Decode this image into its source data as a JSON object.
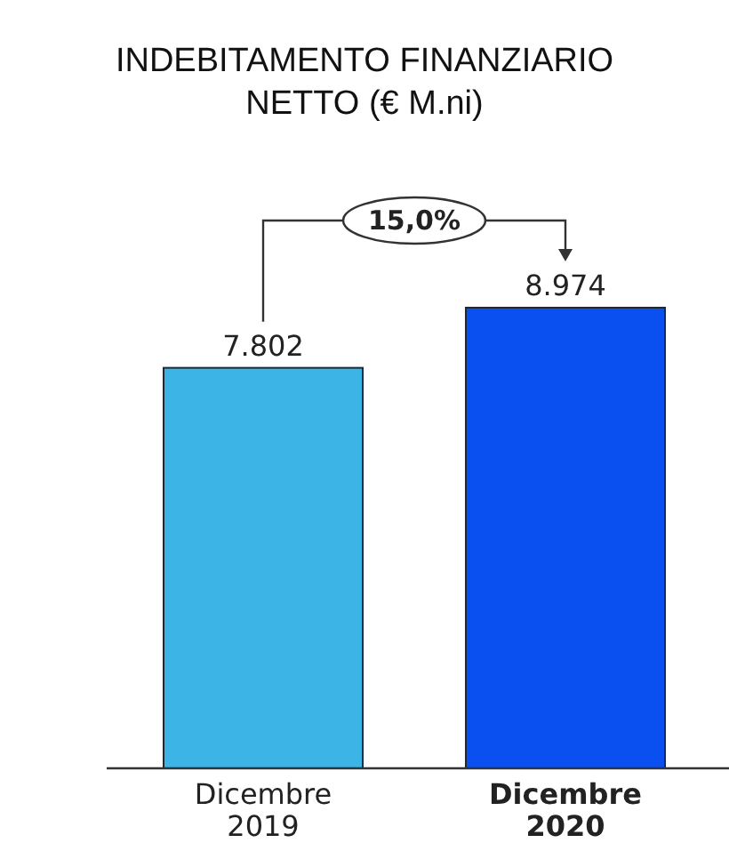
{
  "chart_data": {
    "type": "bar",
    "title": "INDEBITAMENTO FINANZIARIO NETTO (€ M.ni)",
    "categories": [
      "Dicembre 2019",
      "Dicembre 2020"
    ],
    "values": [
      7802,
      8974
    ],
    "colors": [
      "#3cb4e6",
      "#0a50f0"
    ],
    "value_labels": [
      "7.802",
      "8.974"
    ],
    "annotations": [
      "15,0%"
    ]
  }
}
